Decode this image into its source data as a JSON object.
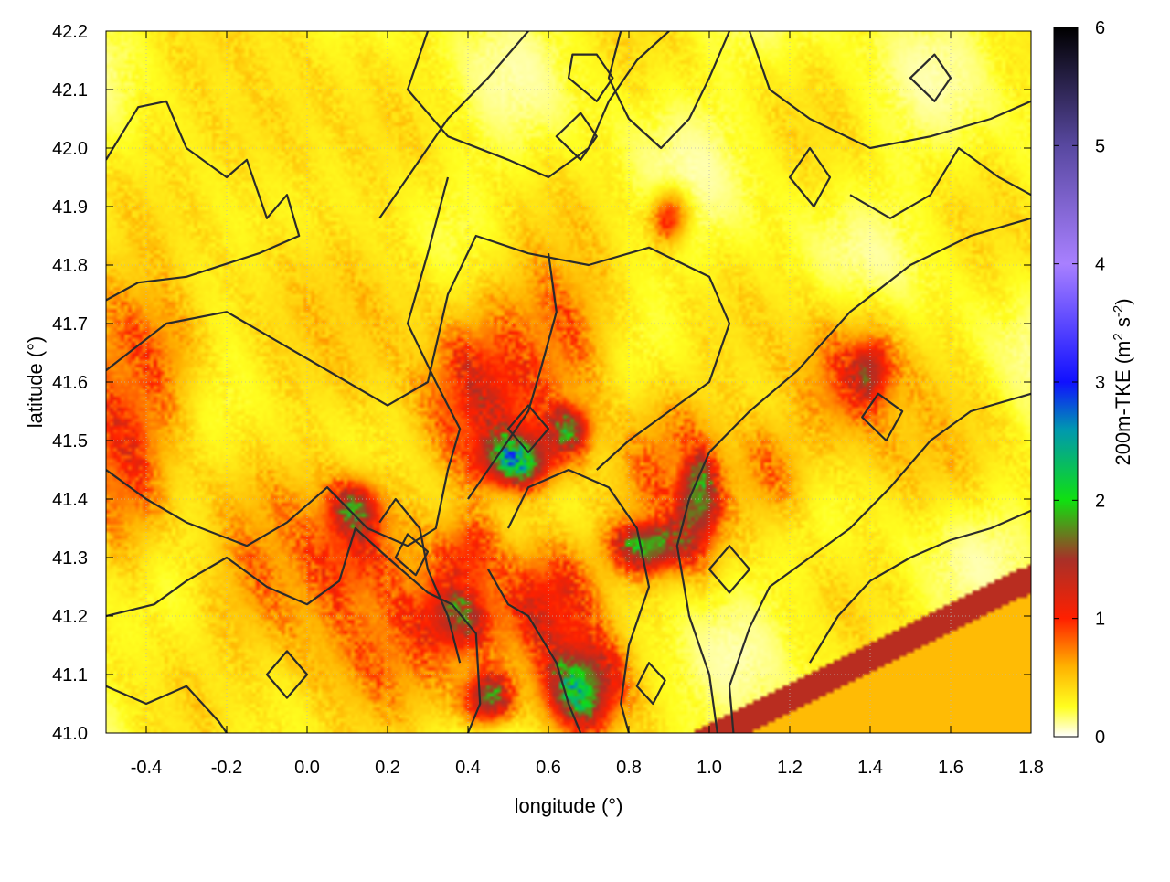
{
  "chart_data": {
    "type": "heatmap",
    "title": "",
    "xlabel": "longitude (°)",
    "ylabel": "latitude (°)",
    "xlim": [
      -0.5,
      1.8
    ],
    "ylim": [
      41.0,
      42.2
    ],
    "x_ticks": [
      "-0.4",
      "-0.2",
      "0.0",
      "0.2",
      "0.4",
      "0.6",
      "0.8",
      "1.0",
      "1.2",
      "1.4",
      "1.6",
      "1.8"
    ],
    "y_ticks": [
      "41.0",
      "41.1",
      "41.2",
      "41.3",
      "41.4",
      "41.5",
      "41.6",
      "41.7",
      "41.8",
      "41.9",
      "42.0",
      "42.1",
      "42.2"
    ],
    "grid": true,
    "colorbar": {
      "label": "200m-TKE (m",
      "label_sup": "2",
      "label_mid": " s",
      "label_sup2": "-2",
      "label_end": ")",
      "range": [
        0,
        6
      ],
      "ticks": [
        "0",
        "1",
        "2",
        "3",
        "4",
        "5",
        "6"
      ],
      "colors": [
        {
          "v": 0.0,
          "c": "#ffffff"
        },
        {
          "v": 0.25,
          "c": "#ffff20"
        },
        {
          "v": 0.6,
          "c": "#ffb000"
        },
        {
          "v": 1.0,
          "c": "#ff2000"
        },
        {
          "v": 1.5,
          "c": "#a83028"
        },
        {
          "v": 2.0,
          "c": "#10e010"
        },
        {
          "v": 2.6,
          "c": "#0098b0"
        },
        {
          "v": 3.0,
          "c": "#1010ff"
        },
        {
          "v": 4.0,
          "c": "#a880ff"
        },
        {
          "v": 5.0,
          "c": "#5848a0"
        },
        {
          "v": 6.0,
          "c": "#000000"
        }
      ]
    },
    "tke_hotspots": [
      {
        "lon": 0.45,
        "lat": 41.58,
        "sx": 0.12,
        "sy": 0.1,
        "v": 1.3
      },
      {
        "lon": 0.52,
        "lat": 41.47,
        "sx": 0.06,
        "sy": 0.03,
        "v": 2.6
      },
      {
        "lon": 0.65,
        "lat": 41.52,
        "sx": 0.04,
        "sy": 0.03,
        "v": 1.9
      },
      {
        "lon": 0.62,
        "lat": 41.68,
        "sx": 0.1,
        "sy": 0.1,
        "v": 0.9
      },
      {
        "lon": -0.45,
        "lat": 41.5,
        "sx": 0.08,
        "sy": 0.15,
        "v": 1.1
      },
      {
        "lon": -0.4,
        "lat": 41.65,
        "sx": 0.1,
        "sy": 0.08,
        "v": 0.9
      },
      {
        "lon": 0.1,
        "lat": 41.3,
        "sx": 0.12,
        "sy": 0.1,
        "v": 1.1
      },
      {
        "lon": 0.12,
        "lat": 41.38,
        "sx": 0.04,
        "sy": 0.03,
        "v": 1.9
      },
      {
        "lon": 0.2,
        "lat": 41.15,
        "sx": 0.15,
        "sy": 0.1,
        "v": 0.9
      },
      {
        "lon": 0.37,
        "lat": 41.2,
        "sx": 0.06,
        "sy": 0.04,
        "v": 1.8
      },
      {
        "lon": 0.4,
        "lat": 41.3,
        "sx": 0.05,
        "sy": 0.05,
        "v": 1.2
      },
      {
        "lon": 0.6,
        "lat": 41.22,
        "sx": 0.1,
        "sy": 0.08,
        "v": 1.3
      },
      {
        "lon": 0.68,
        "lat": 41.08,
        "sx": 0.06,
        "sy": 0.05,
        "v": 2.4
      },
      {
        "lon": 0.45,
        "lat": 41.06,
        "sx": 0.04,
        "sy": 0.03,
        "v": 2.0
      },
      {
        "lon": 0.85,
        "lat": 41.32,
        "sx": 0.06,
        "sy": 0.03,
        "v": 2.3
      },
      {
        "lon": 0.97,
        "lat": 41.4,
        "sx": 0.04,
        "sy": 0.06,
        "v": 2.2
      },
      {
        "lon": 0.9,
        "lat": 41.45,
        "sx": 0.1,
        "sy": 0.1,
        "v": 0.9
      },
      {
        "lon": 1.35,
        "lat": 41.6,
        "sx": 0.1,
        "sy": 0.08,
        "v": 1.0
      },
      {
        "lon": 1.4,
        "lat": 41.62,
        "sx": 0.03,
        "sy": 0.03,
        "v": 1.8
      },
      {
        "lon": 1.15,
        "lat": 41.45,
        "sx": 0.08,
        "sy": 0.07,
        "v": 0.8
      },
      {
        "lon": 0.9,
        "lat": 41.88,
        "sx": 0.03,
        "sy": 0.03,
        "v": 1.2
      },
      {
        "lon": -0.1,
        "lat": 41.28,
        "sx": 0.1,
        "sy": 0.1,
        "v": 0.8
      },
      {
        "lon": 0.1,
        "lat": 41.7,
        "sx": 0.18,
        "sy": 0.12,
        "v": 0.55
      },
      {
        "lon": -0.1,
        "lat": 42.05,
        "sx": 0.2,
        "sy": 0.15,
        "v": 0.45
      },
      {
        "lon": 1.55,
        "lat": 41.5,
        "sx": 0.12,
        "sy": 0.08,
        "v": 0.6
      }
    ],
    "sea_region": {
      "v": 0.55,
      "edge_v": 1.4
    },
    "contours": [
      [
        [
          -0.5,
          41.98
        ],
        [
          -0.42,
          42.07
        ],
        [
          -0.35,
          42.08
        ],
        [
          -0.3,
          42.0
        ],
        [
          -0.2,
          41.95
        ],
        [
          -0.15,
          41.98
        ],
        [
          -0.1,
          41.88
        ],
        [
          -0.05,
          41.92
        ],
        [
          -0.02,
          41.85
        ],
        [
          -0.12,
          41.82
        ],
        [
          -0.3,
          41.78
        ],
        [
          -0.42,
          41.77
        ],
        [
          -0.5,
          41.74
        ]
      ],
      [
        [
          -0.5,
          41.62
        ],
        [
          -0.35,
          41.7
        ],
        [
          -0.2,
          41.72
        ],
        [
          -0.05,
          41.66
        ],
        [
          0.1,
          41.6
        ],
        [
          0.2,
          41.56
        ],
        [
          0.3,
          41.6
        ],
        [
          0.35,
          41.75
        ],
        [
          0.42,
          41.85
        ],
        [
          0.55,
          41.82
        ],
        [
          0.7,
          41.8
        ],
        [
          0.85,
          41.83
        ],
        [
          1.0,
          41.78
        ],
        [
          1.05,
          41.7
        ],
        [
          1.0,
          41.6
        ],
        [
          0.9,
          41.55
        ],
        [
          0.8,
          41.5
        ],
        [
          0.72,
          41.45
        ]
      ],
      [
        [
          -0.5,
          41.45
        ],
        [
          -0.4,
          41.4
        ],
        [
          -0.3,
          41.36
        ],
        [
          -0.15,
          41.32
        ],
        [
          -0.05,
          41.36
        ],
        [
          0.05,
          41.42
        ],
        [
          0.15,
          41.35
        ],
        [
          0.25,
          41.32
        ],
        [
          0.32,
          41.35
        ],
        [
          0.35,
          41.45
        ],
        [
          0.38,
          41.52
        ],
        [
          0.32,
          41.6
        ],
        [
          0.25,
          41.7
        ],
        [
          0.3,
          41.82
        ],
        [
          0.35,
          41.95
        ]
      ],
      [
        [
          -0.5,
          41.2
        ],
        [
          -0.38,
          41.22
        ],
        [
          -0.3,
          41.26
        ],
        [
          -0.2,
          41.3
        ],
        [
          -0.1,
          41.25
        ],
        [
          0.0,
          41.22
        ],
        [
          0.08,
          41.26
        ],
        [
          0.12,
          41.35
        ],
        [
          0.2,
          41.3
        ],
        [
          0.3,
          41.24
        ],
        [
          0.36,
          41.22
        ],
        [
          0.42,
          41.17
        ],
        [
          0.43,
          41.05
        ],
        [
          0.4,
          41.0
        ]
      ],
      [
        [
          0.3,
          42.2
        ],
        [
          0.25,
          42.1
        ],
        [
          0.35,
          42.02
        ],
        [
          0.5,
          41.98
        ],
        [
          0.6,
          41.95
        ],
        [
          0.7,
          42.0
        ],
        [
          0.75,
          42.08
        ],
        [
          0.82,
          42.15
        ],
        [
          0.9,
          42.2
        ]
      ],
      [
        [
          0.78,
          42.2
        ],
        [
          0.75,
          42.12
        ],
        [
          0.8,
          42.05
        ],
        [
          0.88,
          42.0
        ],
        [
          0.95,
          42.05
        ],
        [
          1.0,
          42.12
        ],
        [
          1.05,
          42.2
        ]
      ],
      [
        [
          1.1,
          42.2
        ],
        [
          1.15,
          42.1
        ],
        [
          1.25,
          42.05
        ],
        [
          1.4,
          42.0
        ],
        [
          1.55,
          42.02
        ],
        [
          1.7,
          42.05
        ],
        [
          1.8,
          42.08
        ]
      ],
      [
        [
          1.8,
          41.88
        ],
        [
          1.65,
          41.85
        ],
        [
          1.5,
          41.8
        ],
        [
          1.35,
          41.72
        ],
        [
          1.22,
          41.62
        ],
        [
          1.1,
          41.55
        ],
        [
          1.0,
          41.48
        ],
        [
          0.95,
          41.4
        ],
        [
          0.92,
          41.32
        ],
        [
          0.95,
          41.2
        ],
        [
          1.0,
          41.1
        ],
        [
          1.02,
          41.0
        ]
      ],
      [
        [
          1.8,
          41.58
        ],
        [
          1.65,
          41.55
        ],
        [
          1.55,
          41.5
        ],
        [
          1.45,
          41.42
        ],
        [
          1.35,
          41.35
        ],
        [
          1.25,
          41.3
        ],
        [
          1.15,
          41.25
        ],
        [
          1.1,
          41.18
        ],
        [
          1.05,
          41.08
        ],
        [
          1.06,
          41.0
        ]
      ],
      [
        [
          0.5,
          41.35
        ],
        [
          0.55,
          41.42
        ],
        [
          0.65,
          41.45
        ],
        [
          0.75,
          41.42
        ],
        [
          0.82,
          41.35
        ],
        [
          0.85,
          41.25
        ],
        [
          0.8,
          41.15
        ],
        [
          0.78,
          41.05
        ],
        [
          0.8,
          41.0
        ]
      ],
      [
        [
          0.45,
          41.28
        ],
        [
          0.5,
          41.22
        ],
        [
          0.55,
          41.2
        ],
        [
          0.62,
          41.12
        ],
        [
          0.65,
          41.05
        ],
        [
          0.68,
          41.0
        ]
      ],
      [
        [
          0.38,
          41.12
        ],
        [
          0.35,
          41.2
        ],
        [
          0.3,
          41.28
        ],
        [
          0.28,
          41.35
        ],
        [
          0.22,
          41.4
        ],
        [
          0.18,
          41.36
        ]
      ],
      [
        [
          1.8,
          41.38
        ],
        [
          1.7,
          41.35
        ],
        [
          1.6,
          41.33
        ],
        [
          1.5,
          41.3
        ],
        [
          1.4,
          41.26
        ],
        [
          1.32,
          41.2
        ],
        [
          1.25,
          41.12
        ]
      ],
      [
        [
          -0.5,
          41.08
        ],
        [
          -0.4,
          41.05
        ],
        [
          -0.3,
          41.08
        ],
        [
          -0.22,
          41.02
        ],
        [
          -0.2,
          41.0
        ]
      ],
      [
        [
          0.18,
          41.88
        ],
        [
          0.25,
          41.95
        ],
        [
          0.35,
          42.05
        ],
        [
          0.45,
          42.12
        ],
        [
          0.55,
          42.2
        ]
      ],
      [
        [
          1.35,
          41.92
        ],
        [
          1.45,
          41.88
        ],
        [
          1.55,
          41.92
        ],
        [
          1.62,
          42.0
        ],
        [
          1.72,
          41.95
        ],
        [
          1.8,
          41.92
        ]
      ],
      [
        [
          0.6,
          41.82
        ],
        [
          0.62,
          41.72
        ],
        [
          0.58,
          41.62
        ],
        [
          0.55,
          41.55
        ],
        [
          0.5,
          41.5
        ],
        [
          0.45,
          41.45
        ],
        [
          0.4,
          41.4
        ]
      ]
    ],
    "contour_loops": [
      [
        [
          0.65,
          42.12
        ],
        [
          0.72,
          42.08
        ],
        [
          0.76,
          42.12
        ],
        [
          0.72,
          42.16
        ],
        [
          0.66,
          42.16
        ]
      ],
      [
        [
          0.62,
          42.02
        ],
        [
          0.68,
          41.98
        ],
        [
          0.72,
          42.02
        ],
        [
          0.68,
          42.06
        ]
      ],
      [
        [
          1.5,
          42.12
        ],
        [
          1.56,
          42.08
        ],
        [
          1.6,
          42.12
        ],
        [
          1.56,
          42.16
        ]
      ],
      [
        [
          0.5,
          41.52
        ],
        [
          0.55,
          41.48
        ],
        [
          0.6,
          41.52
        ],
        [
          0.55,
          41.56
        ]
      ],
      [
        [
          0.22,
          41.3
        ],
        [
          0.27,
          41.27
        ],
        [
          0.3,
          41.31
        ],
        [
          0.25,
          41.34
        ]
      ],
      [
        [
          0.82,
          41.08
        ],
        [
          0.86,
          41.05
        ],
        [
          0.89,
          41.09
        ],
        [
          0.85,
          41.12
        ]
      ],
      [
        [
          1.38,
          41.54
        ],
        [
          1.44,
          41.5
        ],
        [
          1.48,
          41.55
        ],
        [
          1.42,
          41.58
        ]
      ],
      [
        [
          1.0,
          41.28
        ],
        [
          1.05,
          41.24
        ],
        [
          1.1,
          41.28
        ],
        [
          1.05,
          41.32
        ]
      ],
      [
        [
          -0.1,
          41.1
        ],
        [
          -0.05,
          41.06
        ],
        [
          0.0,
          41.1
        ],
        [
          -0.05,
          41.14
        ]
      ],
      [
        [
          1.2,
          41.95
        ],
        [
          1.26,
          41.9
        ],
        [
          1.3,
          41.95
        ],
        [
          1.25,
          42.0
        ]
      ]
    ]
  }
}
